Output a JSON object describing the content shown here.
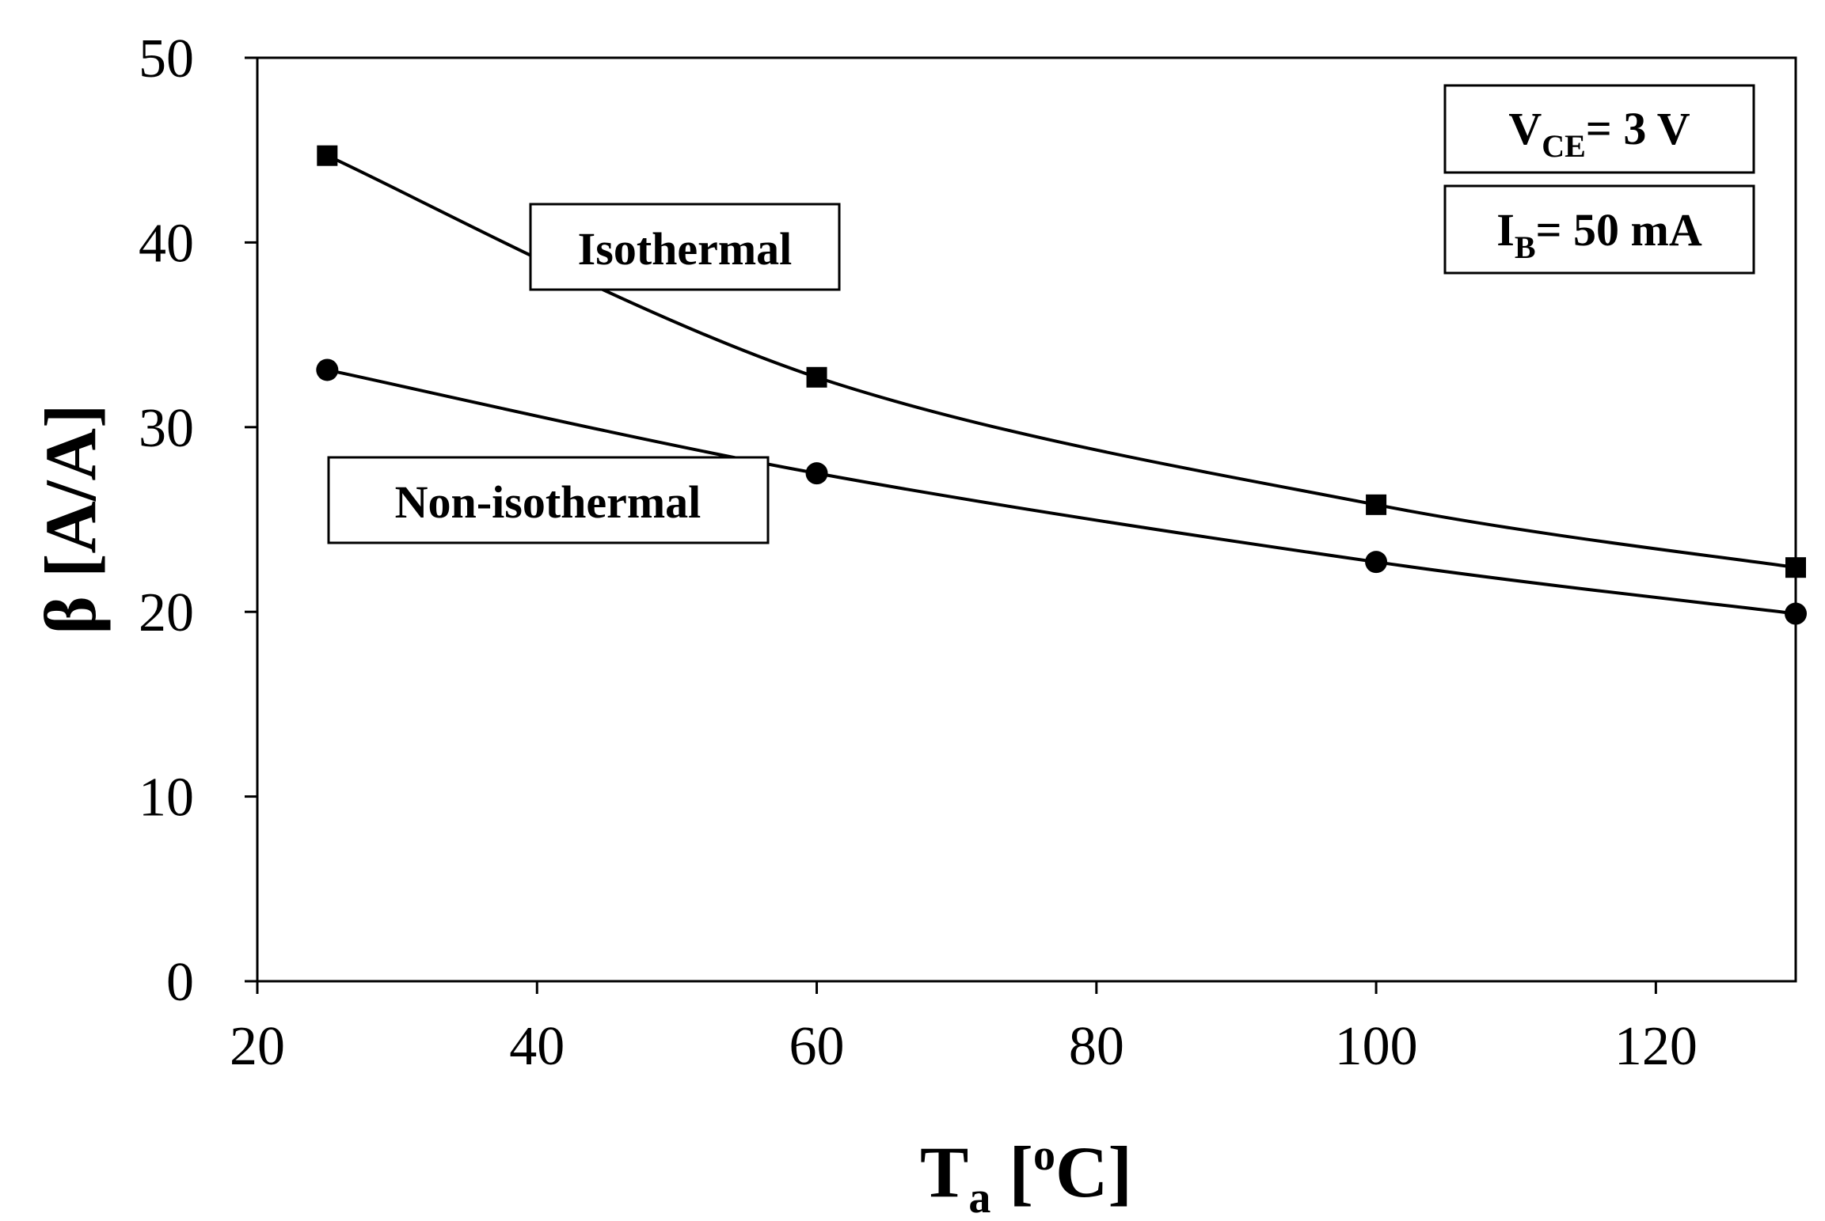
{
  "chart_data": {
    "type": "line",
    "title": "",
    "xlabel": "T",
    "xlabel_sub": "a",
    "xlabel_unit_open": " [",
    "xlabel_unit_sup": "o",
    "xlabel_unit_close": "C]",
    "ylabel": "β [A/A]",
    "xlim": [
      20,
      130
    ],
    "ylim": [
      0,
      50
    ],
    "xticks": [
      20,
      40,
      60,
      80,
      100,
      120
    ],
    "yticks": [
      0,
      10,
      20,
      30,
      40,
      50
    ],
    "x": [
      25,
      60,
      100,
      130
    ],
    "series": [
      {
        "name": "Isothermal",
        "marker": "square",
        "values": [
          44.7,
          32.7,
          25.8,
          22.4
        ]
      },
      {
        "name": "Non-isothermal",
        "marker": "circle",
        "values": [
          33.1,
          27.5,
          22.7,
          19.9
        ]
      }
    ],
    "annotations": {
      "vce": {
        "main": "V",
        "sub": "CE",
        "rest": "= 3 V"
      },
      "ib": {
        "main": "I",
        "sub": "B",
        "rest": "= 50 mA"
      }
    }
  }
}
